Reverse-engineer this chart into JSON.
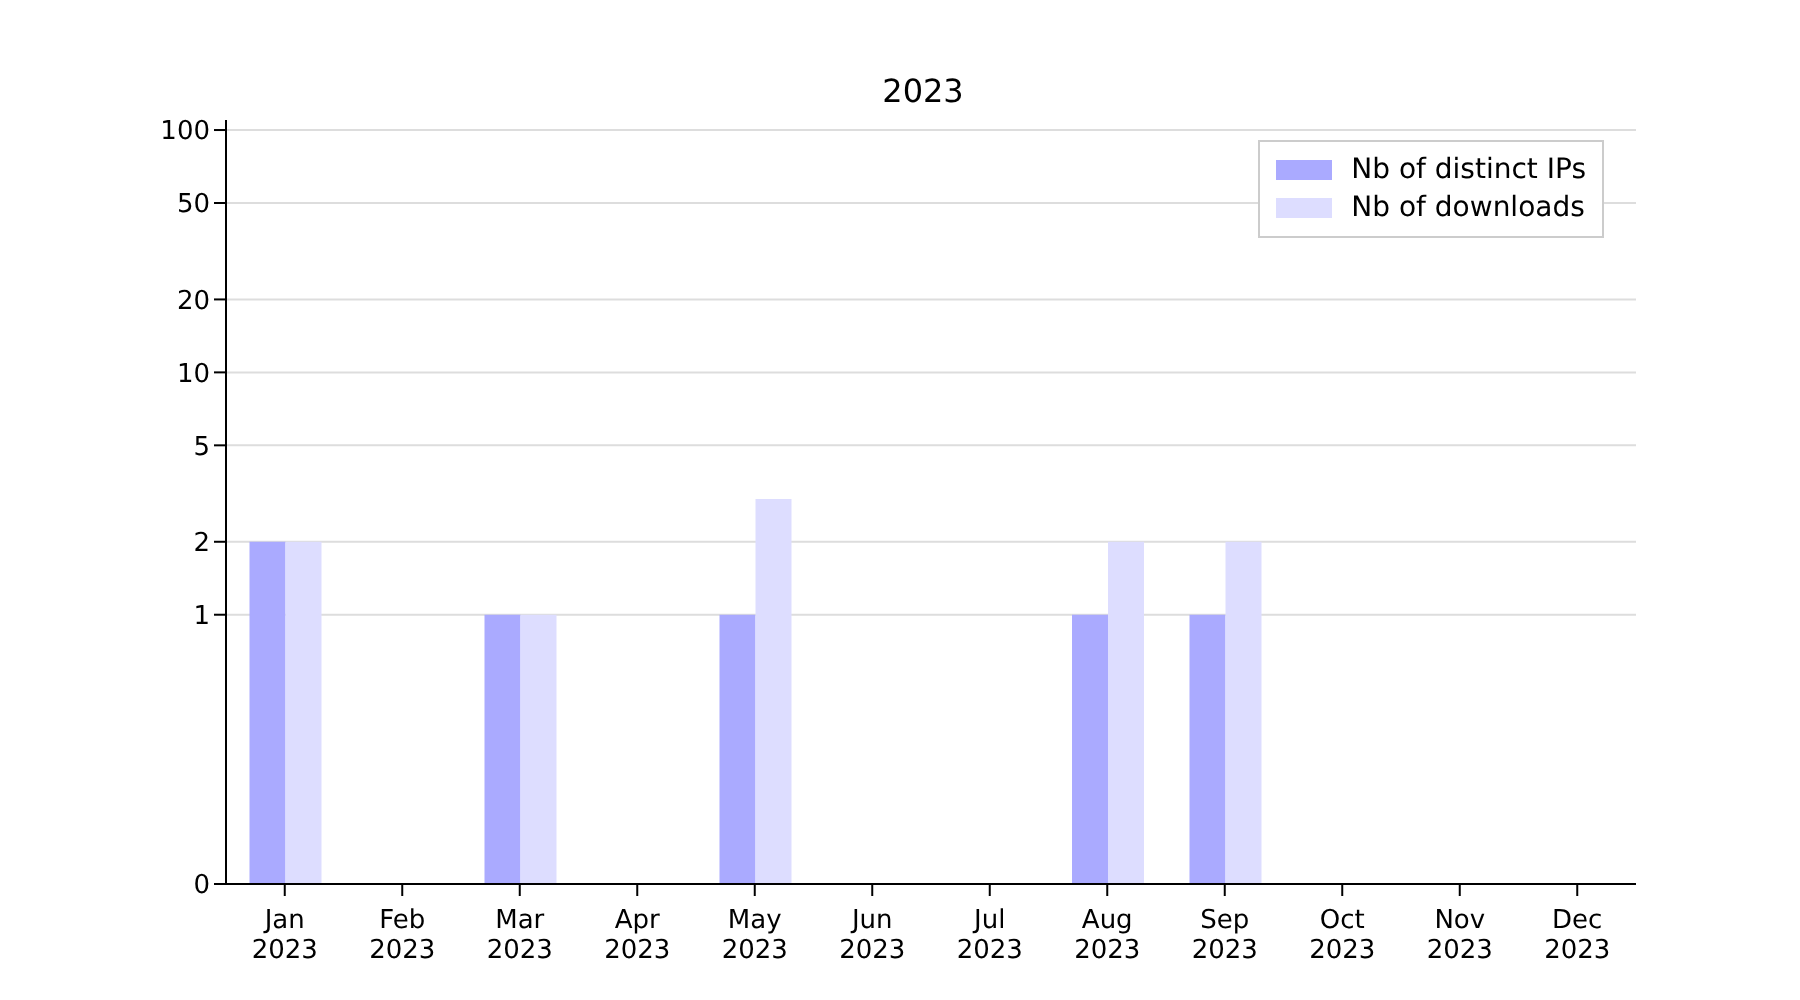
{
  "chart_data": {
    "type": "bar",
    "title": "2023",
    "categories": [
      "Jan 2023",
      "Feb 2023",
      "Mar 2023",
      "Apr 2023",
      "May 2023",
      "Jun 2023",
      "Jul 2023",
      "Aug 2023",
      "Sep 2023",
      "Oct 2023",
      "Nov 2023",
      "Dec 2023"
    ],
    "series": [
      {
        "name": "Nb of distinct IPs",
        "color": "#aaaaff",
        "values": [
          2,
          0,
          1,
          0,
          1,
          0,
          0,
          1,
          1,
          0,
          0,
          0
        ]
      },
      {
        "name": "Nb of downloads",
        "color": "#ddddff",
        "values": [
          2,
          0,
          1,
          0,
          3,
          0,
          0,
          2,
          2,
          0,
          0,
          0
        ]
      }
    ],
    "log": true,
    "ylim": [
      0,
      110
    ],
    "yticks": [
      0,
      1,
      2,
      5,
      10,
      20,
      50,
      100
    ],
    "grid": "y",
    "legend": "top right"
  }
}
